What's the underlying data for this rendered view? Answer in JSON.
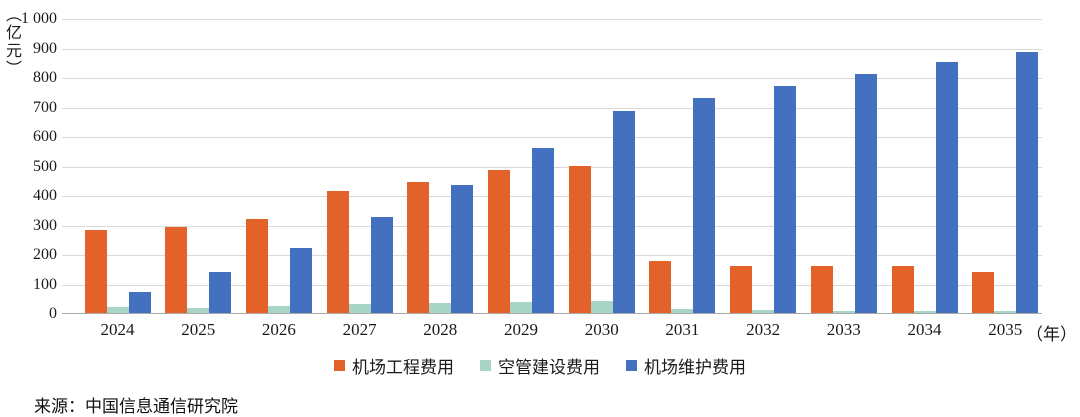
{
  "chart_data": {
    "type": "bar",
    "title": "",
    "unit_label": "（亿元）",
    "x_suffix": "（年）",
    "categories": [
      "2024",
      "2025",
      "2026",
      "2027",
      "2028",
      "2029",
      "2030",
      "2031",
      "2032",
      "2033",
      "2034",
      "2035"
    ],
    "series": [
      {
        "name": "机场工程费用",
        "color": "#e2622a",
        "values": [
          280,
          290,
          320,
          415,
          445,
          485,
          500,
          175,
          160,
          160,
          160,
          140
        ]
      },
      {
        "name": "空管建设费用",
        "color": "#a8d5c5",
        "values": [
          20,
          18,
          24,
          30,
          33,
          36,
          40,
          13,
          10,
          8,
          8,
          8
        ]
      },
      {
        "name": "机场维护费用",
        "color": "#4470c0",
        "values": [
          70,
          140,
          220,
          325,
          435,
          560,
          685,
          730,
          770,
          810,
          850,
          885
        ]
      }
    ],
    "ylim": [
      0,
      1000
    ],
    "y_tick_step": 100,
    "y_tick_labels": [
      "0",
      "100",
      "200",
      "300",
      "400",
      "500",
      "600",
      "700",
      "800",
      "900",
      "1 000"
    ],
    "grid": true,
    "legend_position": "bottom"
  },
  "source": {
    "text": "来源：中国信息通信研究院"
  },
  "colors": {
    "gridline": "#d9d9d9",
    "axis": "#a9a9a9",
    "text": "#1a1a1a"
  }
}
